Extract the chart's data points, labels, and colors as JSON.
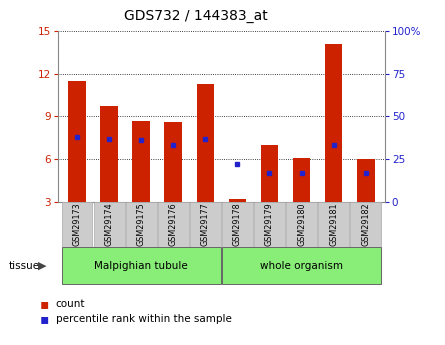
{
  "title": "GDS732 / 144383_at",
  "samples": [
    "GSM29173",
    "GSM29174",
    "GSM29175",
    "GSM29176",
    "GSM29177",
    "GSM29178",
    "GSM29179",
    "GSM29180",
    "GSM29181",
    "GSM29182"
  ],
  "counts": [
    11.5,
    9.7,
    8.7,
    8.6,
    11.3,
    3.2,
    7.0,
    6.1,
    14.1,
    6.0
  ],
  "percentiles": [
    38,
    37,
    36,
    33,
    37,
    22,
    17,
    17,
    33,
    17
  ],
  "ylim_left": [
    3,
    15
  ],
  "ylim_right": [
    0,
    100
  ],
  "yticks_left": [
    3,
    6,
    9,
    12,
    15
  ],
  "yticks_right": [
    0,
    25,
    50,
    75,
    100
  ],
  "ytick_labels_right": [
    "0",
    "25",
    "50",
    "75",
    "100%"
  ],
  "bar_color": "#cc2200",
  "dot_color": "#2222cc",
  "bar_width": 0.55,
  "tissue_color": "#88ee77",
  "tick_bg_color": "#cccccc",
  "xlabel_color_left": "#cc2200",
  "xlabel_color_right": "#2222cc",
  "grid_color": "#000000",
  "background_color": "#ffffff",
  "legend_items": [
    "count",
    "percentile rank within the sample"
  ],
  "legend_colors": [
    "#cc2200",
    "#2222cc"
  ],
  "malpighian_range": [
    0,
    4
  ],
  "whole_range": [
    5,
    9
  ]
}
